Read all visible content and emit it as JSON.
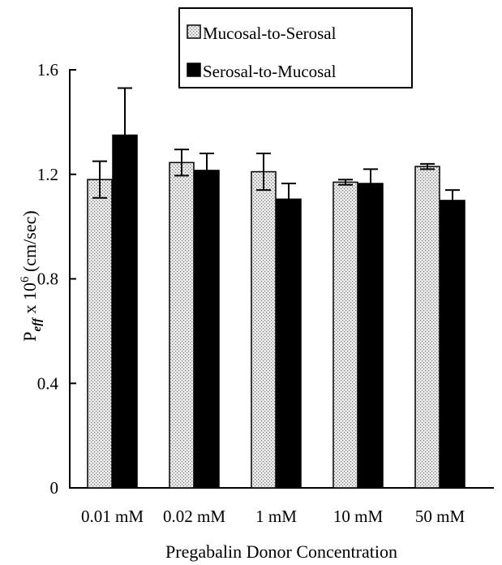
{
  "chart_data": {
    "type": "bar",
    "title": "",
    "xlabel": "Pregabalin Donor Concentration",
    "ylabel_main": "P",
    "ylabel_sub": "eff",
    "ylabel_mid": " x 10",
    "ylabel_sup": "6",
    "ylabel_unit": " (cm/sec)",
    "categories": [
      "0.01 mM",
      "0.02 mM",
      "1 mM",
      "10 mM",
      "50 mM"
    ],
    "ylim": [
      0,
      1.6
    ],
    "yticks": [
      0,
      0.4,
      0.8,
      1.2,
      1.6
    ],
    "ytick_labels": [
      "0",
      "0.4",
      "0.8",
      "1.2",
      "1.6"
    ],
    "grid": false,
    "legend_position": "top",
    "series": [
      {
        "name": "Mucosal-to-Serosal",
        "pattern": "stippled",
        "fill": "#ececec",
        "values": [
          1.18,
          1.245,
          1.21,
          1.17,
          1.23
        ],
        "errors": [
          0.07,
          0.05,
          0.07,
          0.01,
          0.01
        ]
      },
      {
        "name": "Serosal-to-Mucosal",
        "pattern": "solid",
        "fill": "#000000",
        "values": [
          1.35,
          1.215,
          1.105,
          1.165,
          1.1
        ],
        "errors": [
          0.18,
          0.065,
          0.06,
          0.055,
          0.04
        ]
      }
    ]
  }
}
